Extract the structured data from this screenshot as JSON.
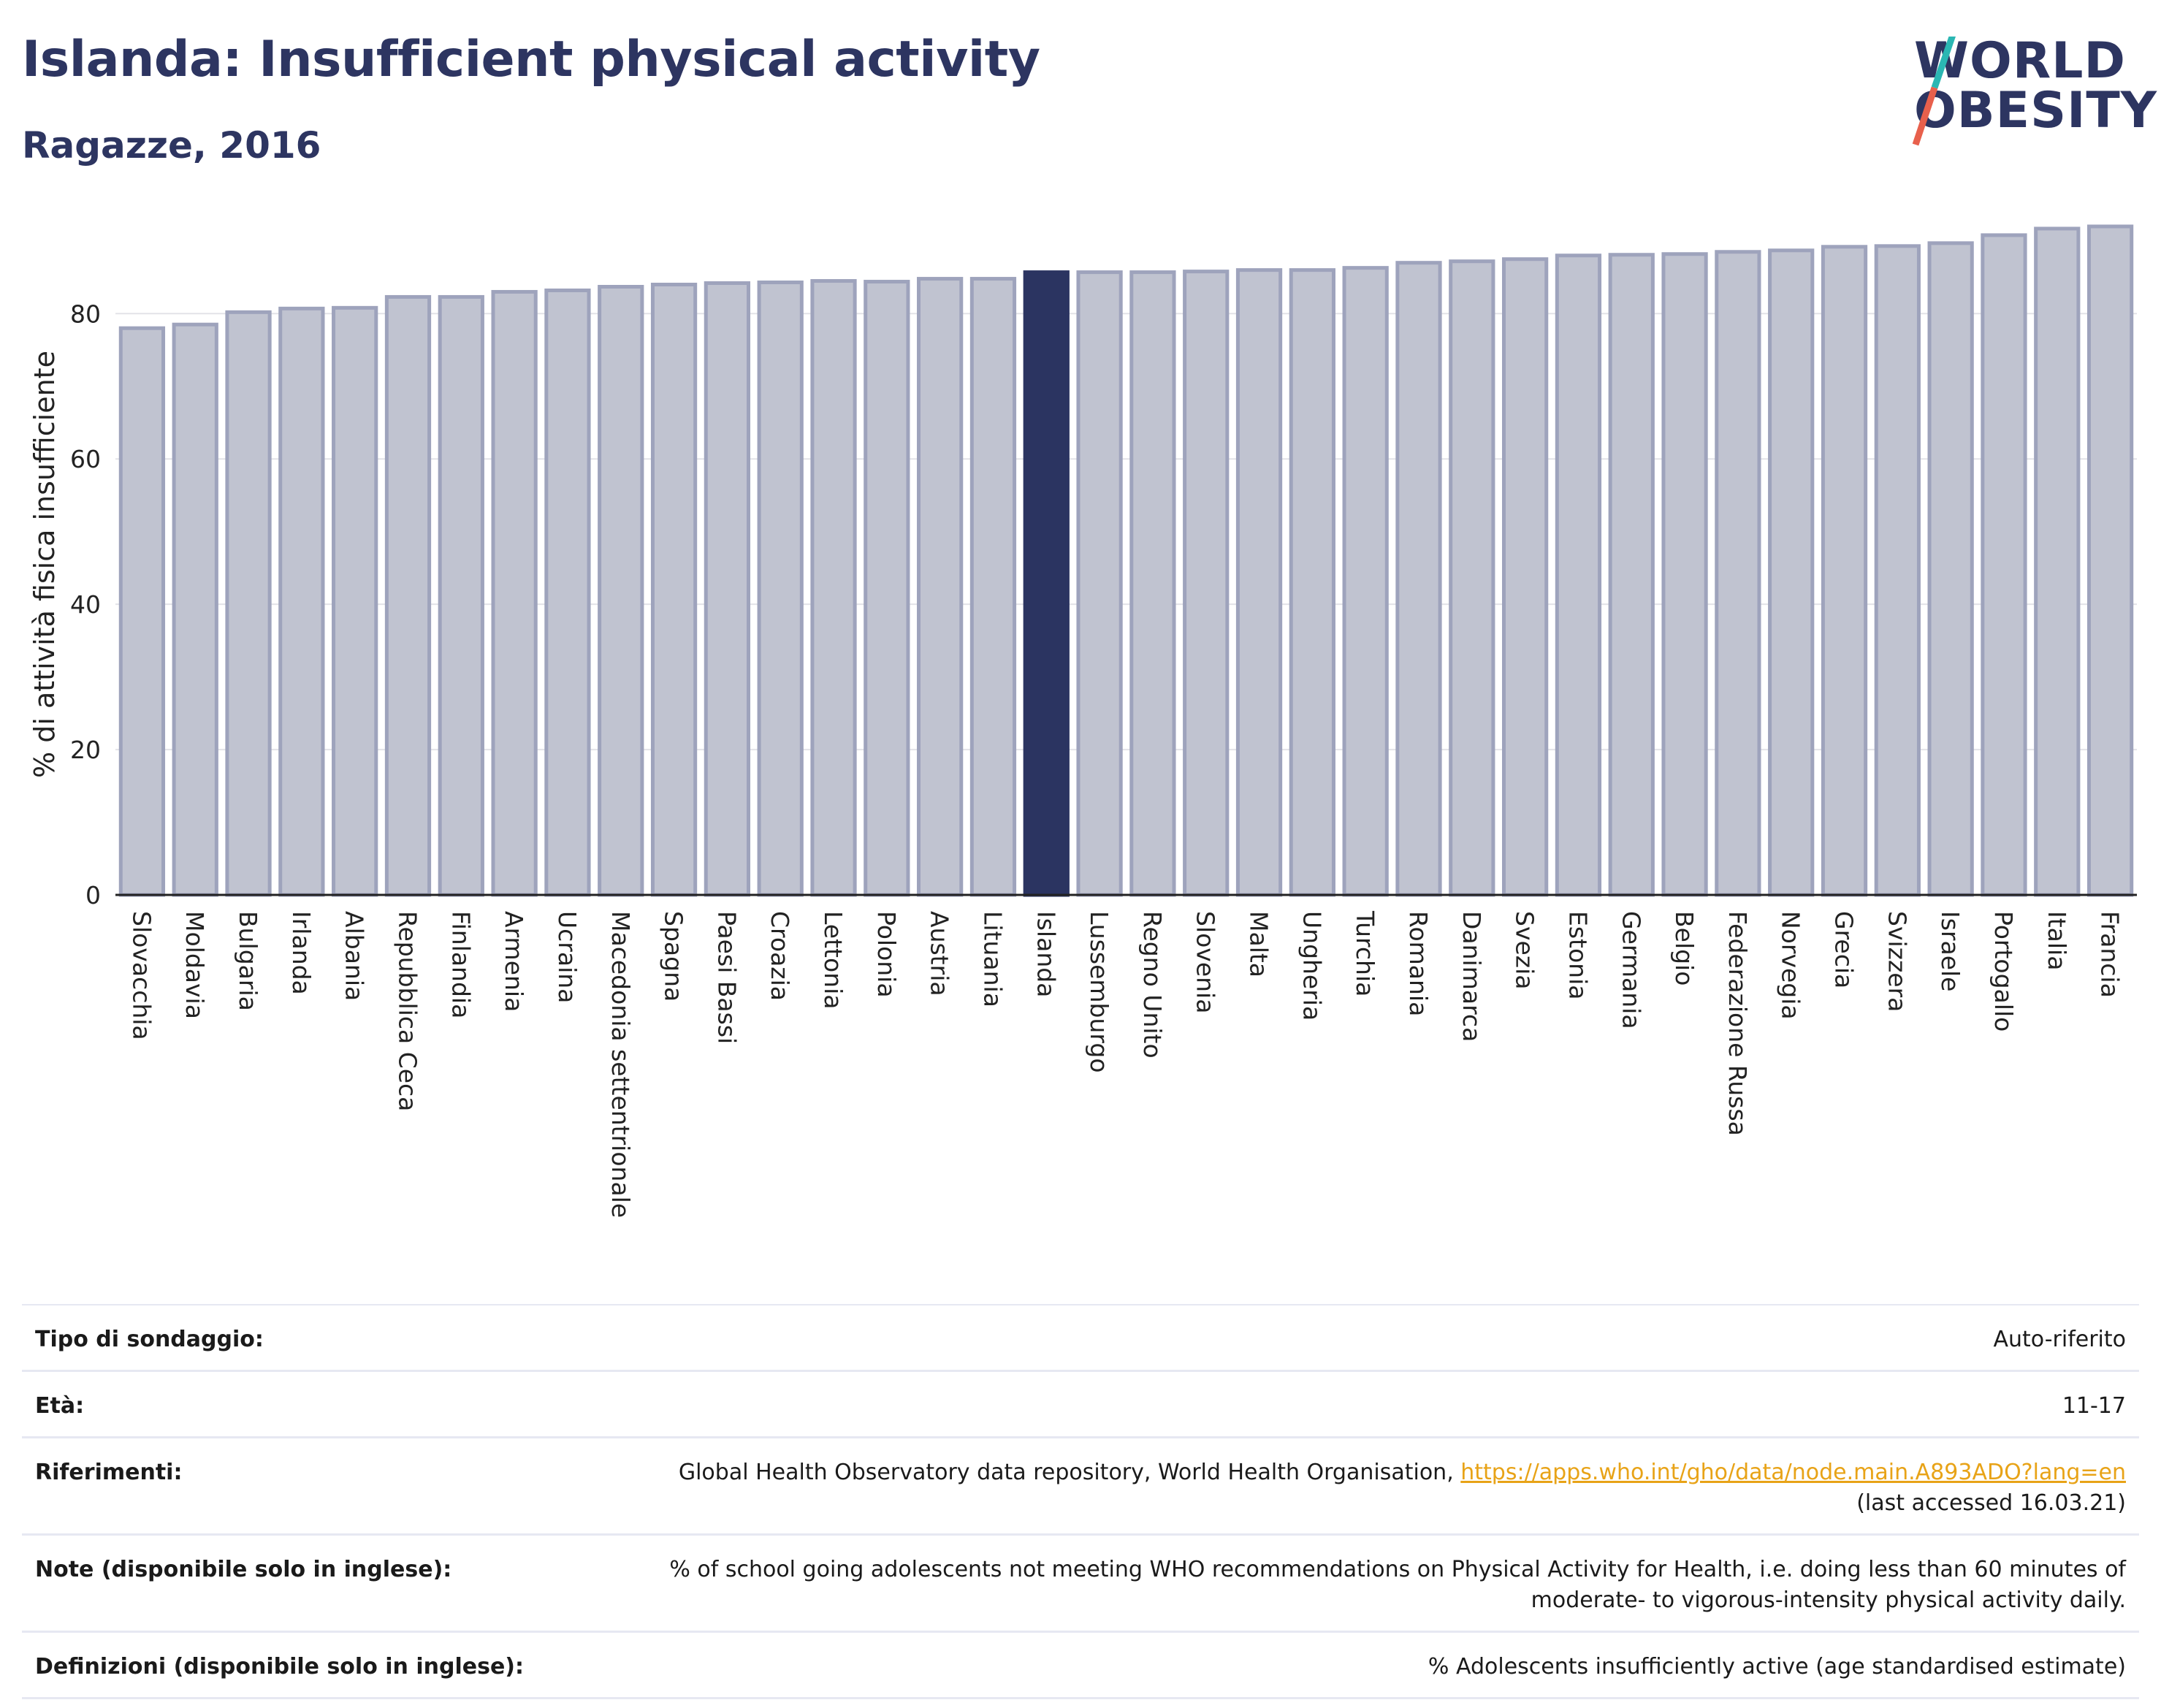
{
  "header": {
    "title": "Islanda: Insufficient physical activity",
    "subtitle": "Ragazze, 2016"
  },
  "logo": {
    "line1": "WORLD",
    "line2": "OBESITY",
    "colors": {
      "text": "#2d3561",
      "slash_top": "#2bb7b3",
      "slash_bottom": "#e8604c"
    }
  },
  "chart_data": {
    "type": "bar",
    "ylabel": "% di attività fisica insufficiente",
    "ylim": [
      0,
      93
    ],
    "yticks": [
      0,
      20,
      40,
      60,
      80
    ],
    "grid": true,
    "highlight": "Islanda",
    "colors": {
      "bar": "#c0c3d0",
      "bar_edge": "#9ea3bc",
      "highlight": "#2b3461"
    },
    "categories": [
      "Slovacchia",
      "Moldavia",
      "Bulgaria",
      "Irlanda",
      "Albania",
      "Repubblica Ceca",
      "Finlandia",
      "Armenia",
      "Ucraina",
      "Macedonia settentrionale",
      "Spagna",
      "Paesi Bassi",
      "Croazia",
      "Lettonia",
      "Polonia",
      "Austria",
      "Lituania",
      "Islanda",
      "Lussemburgo",
      "Regno Unito",
      "Slovenia",
      "Malta",
      "Ungheria",
      "Turchia",
      "Romania",
      "Danimarca",
      "Svezia",
      "Estonia",
      "Germania",
      "Belgio",
      "Federazione Russa",
      "Norvegia",
      "Grecia",
      "Svizzera",
      "Israele",
      "Portogallo",
      "Italia",
      "Francia"
    ],
    "values": [
      78.0,
      78.5,
      80.2,
      80.7,
      80.8,
      82.3,
      82.3,
      83.0,
      83.2,
      83.7,
      84.0,
      84.2,
      84.3,
      84.5,
      84.4,
      84.8,
      84.8,
      85.7,
      85.7,
      85.7,
      85.8,
      86.0,
      86.0,
      86.3,
      87.0,
      87.2,
      87.5,
      88.0,
      88.1,
      88.2,
      88.5,
      88.7,
      89.2,
      89.3,
      89.7,
      90.8,
      91.7,
      92.0
    ]
  },
  "info": {
    "rows": [
      {
        "label": "Tipo di sondaggio:",
        "value": "Auto-riferito"
      },
      {
        "label": "Età:",
        "value": "11-17"
      },
      {
        "label": "Riferimenti:",
        "value": "Global Health Observatory data repository, World Health Organisation, ",
        "link": "https://apps.who.int/gho/data/node.main.A893ADO?lang=en",
        "value2": "(last accessed 16.03.21)"
      },
      {
        "label": "Note (disponibile solo in inglese):",
        "value": "% of school going adolescents not meeting WHO recommendations on Physical Activity for Health, i.e. doing less than 60 minutes of moderate- to vigorous-intensity physical activity daily."
      },
      {
        "label": "Definizioni (disponibile solo in inglese):",
        "value": "% Adolescents insufficiently active (age standardised estimate)"
      }
    ]
  }
}
